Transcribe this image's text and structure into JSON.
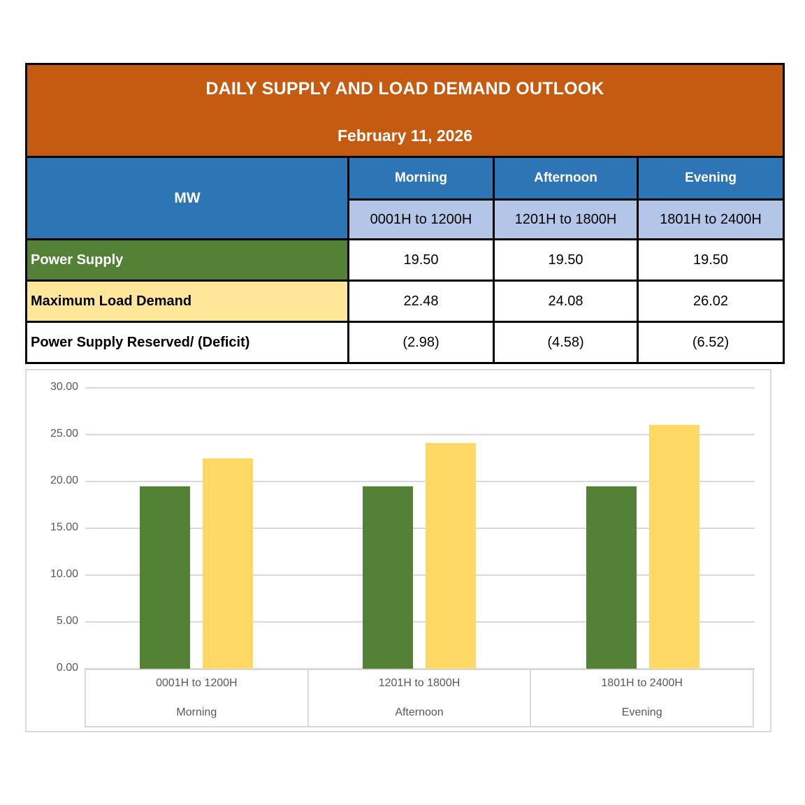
{
  "banner": {
    "title": "DAILY SUPPLY AND LOAD DEMAND OUTLOOK",
    "date": "February 11, 2026"
  },
  "table": {
    "unit_label": "MW",
    "periods": [
      {
        "name": "Morning",
        "hours": "0001H to 1200H"
      },
      {
        "name": "Afternoon",
        "hours": "1201H to 1800H"
      },
      {
        "name": "Evening",
        "hours": "1801H to 2400H"
      }
    ],
    "rows": [
      {
        "label": "Power Supply",
        "values": [
          "19.50",
          "19.50",
          "19.50"
        ]
      },
      {
        "label": "Maximum Load Demand",
        "values": [
          "22.48",
          "24.08",
          "26.02"
        ]
      },
      {
        "label": "Power Supply Reserved/ (Deficit)",
        "values": [
          "(2.98)",
          "(4.58)",
          "(6.52)"
        ]
      }
    ]
  },
  "chart_data": {
    "type": "bar",
    "title": "",
    "xlabel": "",
    "ylabel": "",
    "categories": [
      "0001H to 1200H",
      "1201H to 1800H",
      "1801H to 2400H"
    ],
    "category_groups": [
      "Morning",
      "Afternoon",
      "Evening"
    ],
    "series": [
      {
        "name": "Power Supply",
        "values": [
          19.5,
          19.5,
          19.5
        ],
        "color": "#538135"
      },
      {
        "name": "Maximum Load Demand",
        "values": [
          22.48,
          24.08,
          26.02
        ],
        "color": "#FFD966"
      }
    ],
    "ylim": [
      0,
      30
    ],
    "ytick_step": 5,
    "ytick_labels": [
      "0.00",
      "5.00",
      "10.00",
      "15.00",
      "20.00",
      "25.00",
      "30.00"
    ],
    "grid": true,
    "legend_position": "none"
  },
  "colors": {
    "banner_bg": "#C55A11",
    "header_bg": "#2E75B6",
    "subheader_bg": "#B4C6E7",
    "supply_row_bg": "#538135",
    "demand_row_bg": "#FFE699",
    "bar_supply": "#538135",
    "bar_demand": "#FFD966",
    "gridline": "#D9D9D9",
    "axis_text": "#595959",
    "border": "#000000"
  }
}
